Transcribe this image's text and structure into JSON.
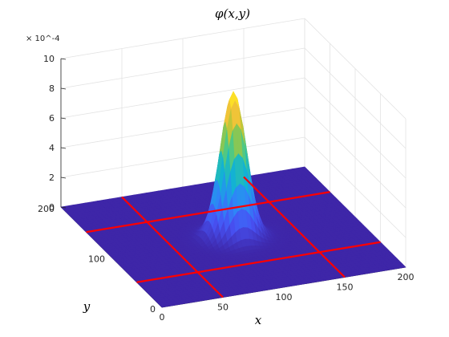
{
  "chart_data": {
    "type": "surface",
    "title": "φ(x,y)",
    "xlabel": "x",
    "ylabel": "y",
    "zlabel": "",
    "xlim": [
      0,
      200
    ],
    "ylim": [
      0,
      200
    ],
    "zlim": [
      0,
      0.001
    ],
    "x_ticks": [
      "0",
      "50",
      "100",
      "150",
      "200"
    ],
    "y_ticks": [
      "0",
      "100",
      "200"
    ],
    "z_ticks": [
      "0",
      "2",
      "4",
      "6",
      "8",
      "10"
    ],
    "z_exponent": "× 10^-4",
    "grid": true,
    "colormap": "parula",
    "surface": {
      "function": "gaussian",
      "peak": 0.00098,
      "center_x": 100,
      "center_y": 100,
      "sigma": 10
    },
    "lines": {
      "color": "#ff0000",
      "x_values": [
        50,
        150
      ],
      "y_values": [
        50,
        150
      ]
    }
  }
}
